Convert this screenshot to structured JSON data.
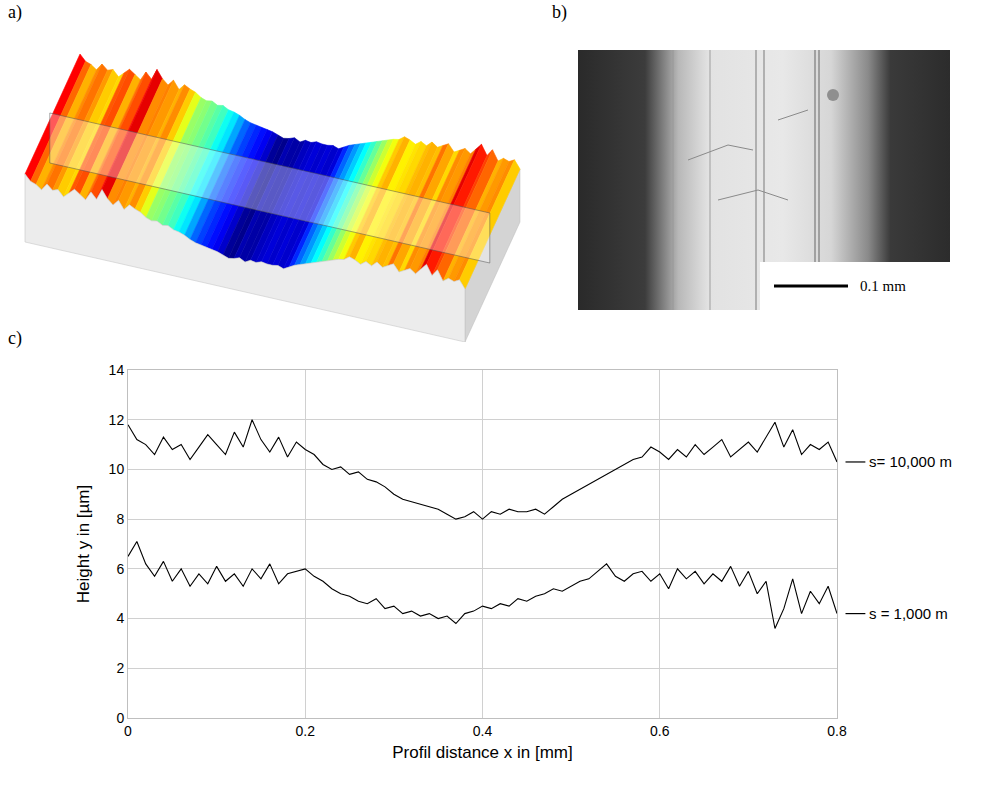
{
  "panel_labels": {
    "a": "a)",
    "b": "b)",
    "c": "c)"
  },
  "panel_b": {
    "scale_bar": "0.1 mm"
  },
  "chart_data": {
    "type": "line",
    "x_label": "Profil distance x in [mm]",
    "y_label": "Height y in [µm]",
    "x": [
      0.0,
      0.01,
      0.02,
      0.03,
      0.04,
      0.05,
      0.06,
      0.07,
      0.08,
      0.09,
      0.1,
      0.11,
      0.12,
      0.13,
      0.14,
      0.15,
      0.16,
      0.17,
      0.18,
      0.19,
      0.2,
      0.21,
      0.22,
      0.23,
      0.24,
      0.25,
      0.26,
      0.27,
      0.28,
      0.29,
      0.3,
      0.31,
      0.32,
      0.33,
      0.34,
      0.35,
      0.36,
      0.37,
      0.38,
      0.39,
      0.4,
      0.41,
      0.42,
      0.43,
      0.44,
      0.45,
      0.46,
      0.47,
      0.48,
      0.49,
      0.5,
      0.51,
      0.52,
      0.53,
      0.54,
      0.55,
      0.56,
      0.57,
      0.58,
      0.59,
      0.6,
      0.61,
      0.62,
      0.63,
      0.64,
      0.65,
      0.66,
      0.67,
      0.68,
      0.69,
      0.7,
      0.71,
      0.72,
      0.73,
      0.74,
      0.75,
      0.76,
      0.77,
      0.78,
      0.79,
      0.8
    ],
    "series": [
      {
        "name": "s= 10,000 m",
        "color": "#000000",
        "values": [
          11.8,
          11.2,
          11.0,
          10.6,
          11.3,
          10.8,
          11.0,
          10.4,
          10.9,
          11.4,
          11.0,
          10.6,
          11.5,
          10.9,
          12.0,
          11.2,
          10.7,
          11.3,
          10.5,
          11.1,
          10.8,
          10.6,
          10.2,
          10.0,
          10.1,
          9.8,
          9.9,
          9.6,
          9.5,
          9.3,
          9.0,
          8.8,
          8.7,
          8.6,
          8.5,
          8.4,
          8.2,
          8.0,
          8.1,
          8.3,
          8.0,
          8.3,
          8.2,
          8.4,
          8.3,
          8.3,
          8.4,
          8.2,
          8.5,
          8.8,
          9.0,
          9.2,
          9.4,
          9.6,
          9.8,
          10.0,
          10.2,
          10.4,
          10.5,
          10.9,
          10.7,
          10.4,
          10.8,
          10.5,
          11.0,
          10.6,
          10.9,
          11.2,
          10.5,
          10.8,
          11.1,
          10.7,
          11.3,
          11.9,
          10.9,
          11.6,
          10.6,
          11.0,
          10.8,
          11.1,
          10.3
        ]
      },
      {
        "name": "s = 1,000 m",
        "color": "#000000",
        "values": [
          6.5,
          7.1,
          6.2,
          5.7,
          6.3,
          5.5,
          6.0,
          5.3,
          5.8,
          5.4,
          6.1,
          5.5,
          5.8,
          5.3,
          6.0,
          5.6,
          6.2,
          5.4,
          5.8,
          5.9,
          6.0,
          5.7,
          5.5,
          5.2,
          5.0,
          4.9,
          4.7,
          4.6,
          4.8,
          4.4,
          4.5,
          4.2,
          4.3,
          4.1,
          4.2,
          4.0,
          4.1,
          3.8,
          4.2,
          4.3,
          4.5,
          4.4,
          4.6,
          4.5,
          4.8,
          4.7,
          4.9,
          5.0,
          5.2,
          5.1,
          5.3,
          5.5,
          5.6,
          5.9,
          6.2,
          5.7,
          5.5,
          5.8,
          5.9,
          5.5,
          5.8,
          5.2,
          6.0,
          5.6,
          5.9,
          5.4,
          5.8,
          5.5,
          6.1,
          5.3,
          5.9,
          5.0,
          5.5,
          3.6,
          4.4,
          5.6,
          4.2,
          5.1,
          4.6,
          5.3,
          4.2
        ]
      }
    ],
    "xlim": [
      0,
      0.8
    ],
    "xticks": [
      0,
      0.2,
      0.4,
      0.6,
      0.8
    ],
    "ylim": [
      0,
      14
    ],
    "yticks": [
      0,
      2,
      4,
      6,
      8,
      10,
      12,
      14
    ],
    "grid": true,
    "legend": "right"
  }
}
